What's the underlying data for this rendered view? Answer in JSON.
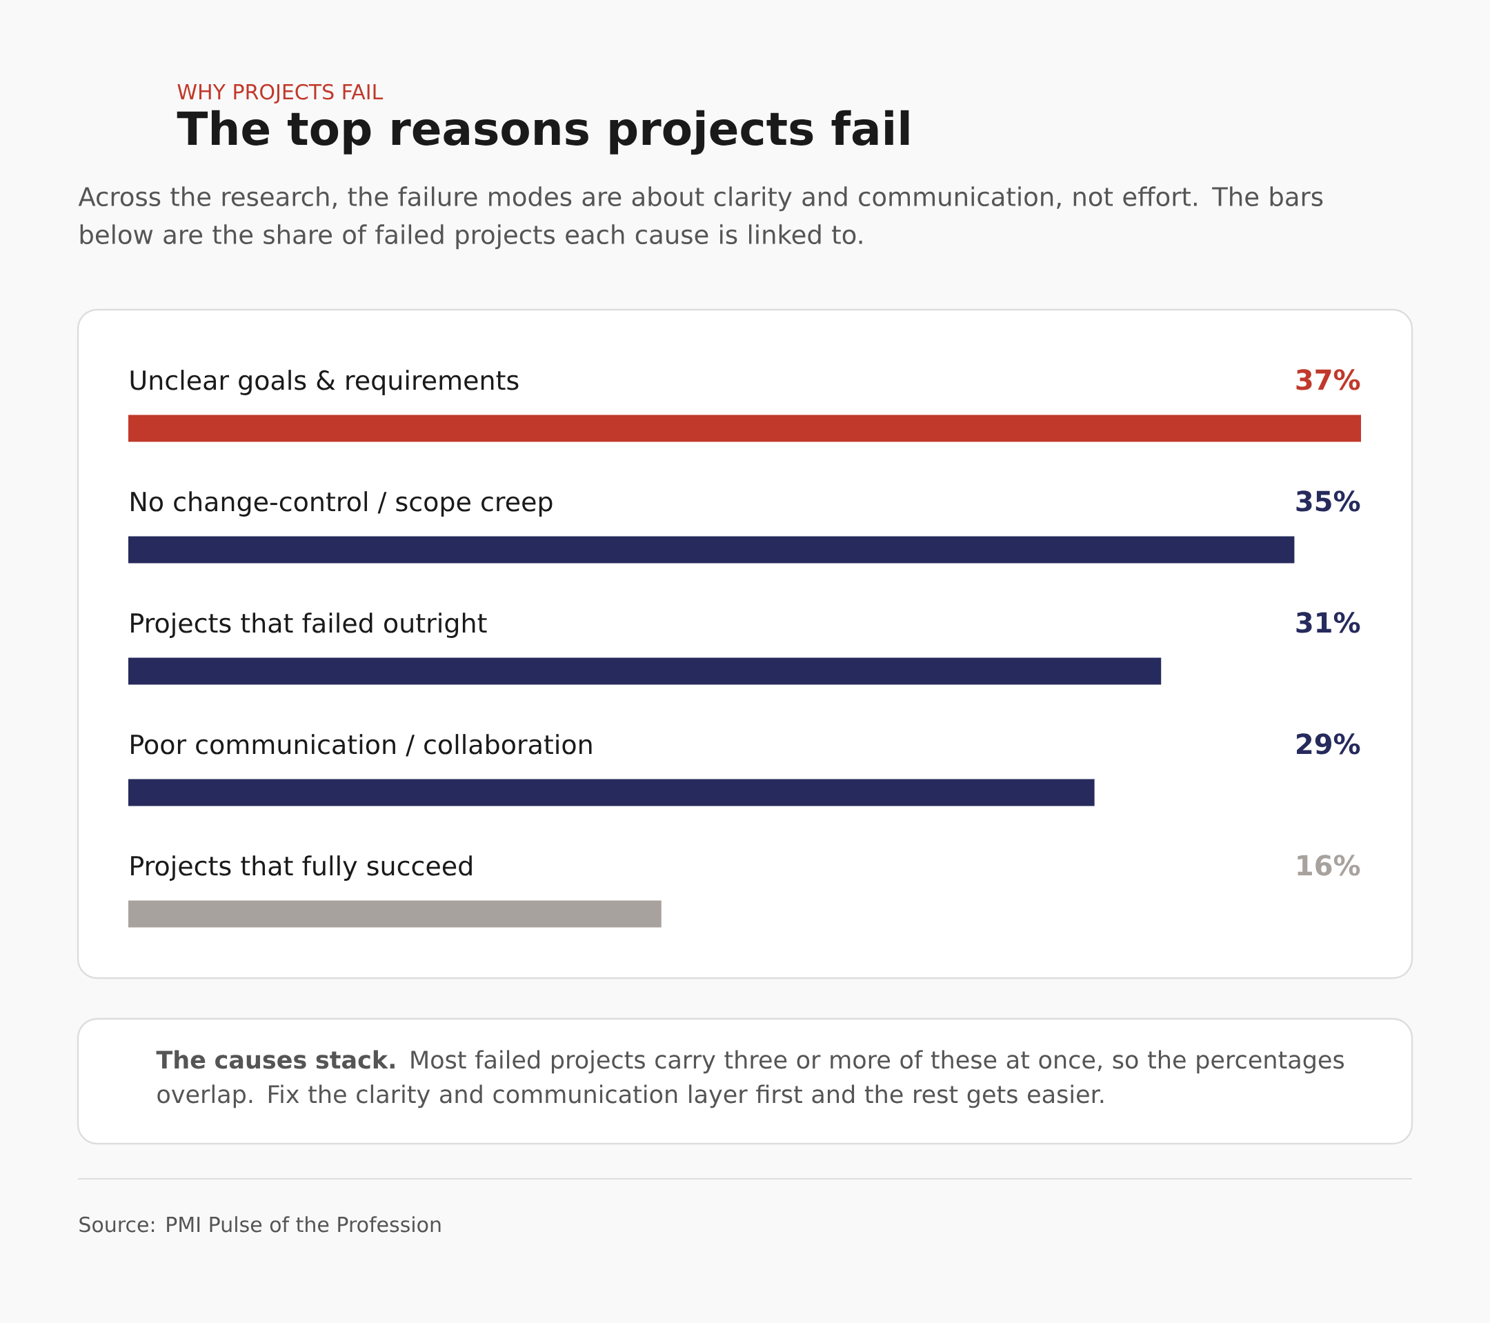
{
  "chart_data": {
    "type": "bar",
    "orientation": "horizontal",
    "title": "The top reasons projects fail",
    "subtitle": "Across the research, the failure modes are about clarity and communication, not effort. The bars below are the share of failed projects each cause is linked to.",
    "annotations": [
      "WHY PROJECTS FAIL",
      "**The causes stack.** Most failed projects carry three or more of these at once, so the percentages overlap. Fix the clarity and communication layer first and the rest gets easier.",
      "Source: PMI Pulse of the Profession"
    ],
    "categories": [
      "Unclear goals & requirements",
      "No change-control / scope creep",
      "Projects that failed outright",
      "Poor communication / collaboration",
      "Projects that fully succeed"
    ],
    "values": [
      37,
      35,
      31,
      29,
      16
    ],
    "colors": [
      "#c0392b",
      "#262a5c",
      "#262a5c",
      "#262a5c",
      "#a8a29e"
    ],
    "value_labels": [
      "37%",
      "35%",
      "31%",
      "29%",
      "16%"
    ],
    "xlim": [
      0,
      37
    ],
    "tick_labels": false
  }
}
